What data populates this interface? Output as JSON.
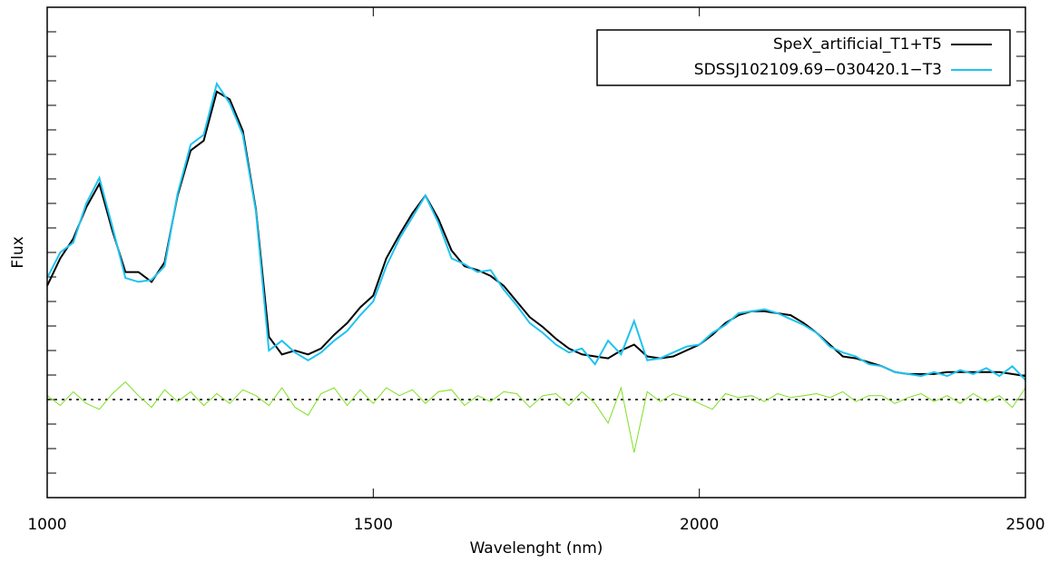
{
  "chart_data": {
    "type": "line",
    "xlabel": "Wavelenght (nm)",
    "ylabel": "Flux",
    "xlim": [
      1000,
      2500
    ],
    "xticks": [
      1000,
      1500,
      2000,
      2500
    ],
    "ylim": [
      -0.5,
      2
    ],
    "yticks": [
      -0.375,
      -0.25,
      -0.125,
      0,
      0.125,
      0.25,
      0.375,
      0.5,
      0.625,
      0.75,
      0.875,
      1,
      1.125,
      1.25,
      1.375,
      1.5,
      1.625,
      1.75,
      1.875
    ],
    "legend": "upper right",
    "x": [
      1000,
      1020,
      1040,
      1060,
      1080,
      1100,
      1120,
      1140,
      1160,
      1180,
      1200,
      1220,
      1240,
      1260,
      1280,
      1300,
      1320,
      1340,
      1360,
      1380,
      1400,
      1420,
      1440,
      1460,
      1480,
      1500,
      1520,
      1540,
      1560,
      1580,
      1600,
      1620,
      1640,
      1660,
      1680,
      1700,
      1720,
      1740,
      1760,
      1780,
      1800,
      1820,
      1840,
      1860,
      1880,
      1900,
      1920,
      1940,
      1960,
      1980,
      2000,
      2020,
      2040,
      2060,
      2080,
      2100,
      2120,
      2140,
      2160,
      2180,
      2200,
      2220,
      2240,
      2260,
      2280,
      2300,
      2320,
      2340,
      2360,
      2380,
      2400,
      2420,
      2440,
      2460,
      2480,
      2500
    ],
    "series": [
      {
        "name": "SpeX_artificial_T1+T5",
        "color": "#000000",
        "values": [
          0.58,
          0.72,
          0.82,
          0.98,
          1.1,
          0.86,
          0.65,
          0.65,
          0.6,
          0.7,
          1.04,
          1.27,
          1.32,
          1.57,
          1.53,
          1.37,
          0.97,
          0.32,
          0.23,
          0.25,
          0.23,
          0.26,
          0.33,
          0.39,
          0.47,
          0.53,
          0.72,
          0.84,
          0.95,
          1.04,
          0.92,
          0.76,
          0.68,
          0.66,
          0.63,
          0.58,
          0.5,
          0.42,
          0.37,
          0.31,
          0.26,
          0.23,
          0.22,
          0.21,
          0.25,
          0.28,
          0.22,
          0.21,
          0.22,
          0.25,
          0.28,
          0.33,
          0.39,
          0.43,
          0.45,
          0.45,
          0.44,
          0.43,
          0.39,
          0.34,
          0.28,
          0.22,
          0.21,
          0.19,
          0.17,
          0.14,
          0.13,
          0.13,
          0.13,
          0.14,
          0.14,
          0.14,
          0.14,
          0.14,
          0.13,
          0.12
        ]
      },
      {
        "name": "SDSSJ102109.69−030420.1−T3",
        "color": "#1ec3f0",
        "values": [
          0.62,
          0.75,
          0.8,
          1.0,
          1.13,
          0.88,
          0.62,
          0.6,
          0.61,
          0.68,
          1.05,
          1.3,
          1.35,
          1.61,
          1.51,
          1.35,
          0.96,
          0.25,
          0.3,
          0.24,
          0.2,
          0.24,
          0.3,
          0.35,
          0.43,
          0.5,
          0.68,
          0.82,
          0.93,
          1.04,
          0.9,
          0.72,
          0.69,
          0.65,
          0.66,
          0.56,
          0.48,
          0.39,
          0.34,
          0.28,
          0.24,
          0.26,
          0.18,
          0.3,
          0.23,
          0.4,
          0.2,
          0.21,
          0.24,
          0.27,
          0.28,
          0.34,
          0.38,
          0.44,
          0.45,
          0.46,
          0.44,
          0.41,
          0.38,
          0.34,
          0.27,
          0.24,
          0.22,
          0.18,
          0.17,
          0.14,
          0.13,
          0.12,
          0.14,
          0.12,
          0.15,
          0.13,
          0.16,
          0.12,
          0.17,
          0.1
        ]
      }
    ],
    "residual": {
      "color": "#7ee021",
      "values": [
        0.02,
        -0.03,
        0.04,
        -0.02,
        -0.05,
        0.03,
        0.09,
        0.02,
        -0.04,
        0.05,
        -0.01,
        0.04,
        -0.03,
        0.03,
        -0.02,
        0.05,
        0.02,
        -0.03,
        0.06,
        -0.04,
        -0.08,
        0.03,
        0.06,
        -0.03,
        0.05,
        -0.02,
        0.06,
        0.02,
        0.05,
        -0.02,
        0.04,
        0.05,
        -0.03,
        0.02,
        -0.01,
        0.04,
        0.03,
        -0.04,
        0.02,
        0.03,
        -0.03,
        0.04,
        -0.02,
        -0.12,
        0.06,
        -0.27,
        0.04,
        -0.01,
        0.03,
        0.01,
        -0.02,
        -0.05,
        0.03,
        0.01,
        0.02,
        -0.01,
        0.03,
        0.01,
        0.02,
        0.03,
        0.01,
        0.04,
        -0.01,
        0.02,
        0.02,
        -0.02,
        0.01,
        0.03,
        -0.01,
        0.02,
        -0.02,
        0.03,
        -0.01,
        0.02,
        -0.04,
        0.06
      ]
    },
    "reference_line": 0
  }
}
